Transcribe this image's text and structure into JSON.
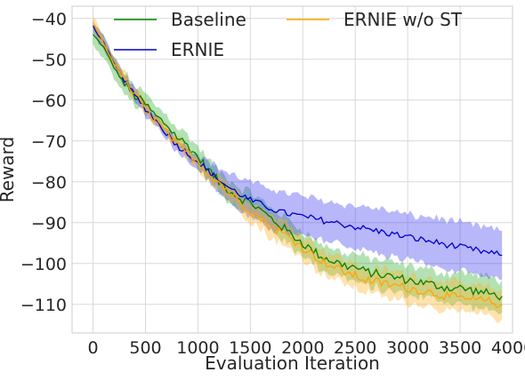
{
  "chart_data": {
    "type": "line",
    "xlabel": "Evaluation Iteration",
    "ylabel": "Reward",
    "xlim": [
      -200,
      4000
    ],
    "ylim": [
      -117,
      -37
    ],
    "xticks": [
      0,
      500,
      1000,
      1500,
      2000,
      2500,
      3000,
      3500,
      4000
    ],
    "yticks": [
      -40,
      -50,
      -60,
      -70,
      -80,
      -90,
      -100,
      -110
    ],
    "xtick_labels": [
      "0",
      "500",
      "1000",
      "1500",
      "2000",
      "2500",
      "3000",
      "3500",
      "4000"
    ],
    "ytick_labels": [
      "−40",
      "−50",
      "−60",
      "−70",
      "−80",
      "−90",
      "−100",
      "−110"
    ],
    "grid": true,
    "legend_position": "top",
    "series": [
      {
        "name": "Baseline",
        "color": "#008000",
        "x": [
          0,
          100,
          200,
          300,
          400,
          500,
          600,
          700,
          800,
          900,
          1000,
          1100,
          1200,
          1300,
          1400,
          1500,
          1600,
          1700,
          1800,
          1900,
          2000,
          2100,
          2200,
          2300,
          2400,
          2500,
          2600,
          2700,
          2800,
          2900,
          3000,
          3100,
          3200,
          3300,
          3400,
          3500,
          3600,
          3700,
          3800,
          3900
        ],
        "y": [
          -44,
          -47,
          -52,
          -56,
          -59,
          -61,
          -64,
          -66,
          -69,
          -71,
          -74,
          -77,
          -80,
          -82,
          -84,
          -85,
          -87,
          -89,
          -91,
          -93,
          -95,
          -97,
          -98.5,
          -99.5,
          -100.5,
          -101,
          -102,
          -102.5,
          -103,
          -103.5,
          -104,
          -104.5,
          -105,
          -105.5,
          -106,
          -106,
          -106.5,
          -107,
          -107.5,
          -108
        ],
        "band": [
          2.5,
          2.5,
          2.5,
          2.5,
          2.5,
          2.5,
          2.5,
          2.5,
          2.5,
          2.5,
          2.5,
          2.5,
          2.5,
          2.5,
          2.5,
          2.5,
          2.5,
          2.5,
          3,
          3,
          3,
          3,
          3,
          3,
          3,
          3.5,
          3.5,
          3.5,
          3.5,
          3.5,
          3.5,
          3.5,
          3.5,
          3.5,
          3.5,
          4,
          4,
          4,
          4,
          4
        ]
      },
      {
        "name": "ERNIE",
        "color": "#0000cc",
        "x": [
          0,
          100,
          200,
          300,
          400,
          500,
          600,
          700,
          800,
          900,
          1000,
          1100,
          1200,
          1300,
          1400,
          1500,
          1600,
          1700,
          1800,
          1900,
          2000,
          2100,
          2200,
          2300,
          2400,
          2500,
          2600,
          2700,
          2800,
          2900,
          3000,
          3100,
          3200,
          3300,
          3400,
          3500,
          3600,
          3700,
          3800,
          3900
        ],
        "y": [
          -42,
          -46,
          -51,
          -55,
          -59,
          -62,
          -65,
          -68,
          -71,
          -73,
          -75,
          -77.5,
          -79.5,
          -81.5,
          -83,
          -84.5,
          -85.5,
          -86.5,
          -87.5,
          -88,
          -88.5,
          -89,
          -89.5,
          -90,
          -90.5,
          -91,
          -91.5,
          -92,
          -92.5,
          -93,
          -93.5,
          -94,
          -94.5,
          -95,
          -95.5,
          -96,
          -96.5,
          -97,
          -97.5,
          -98
        ],
        "band": [
          1.5,
          1.5,
          1.5,
          1.5,
          1.5,
          1.5,
          1.5,
          1.5,
          1.5,
          1.5,
          2,
          2.5,
          3,
          3.5,
          4,
          4.5,
          4.5,
          5,
          5,
          5,
          5,
          5,
          5,
          5,
          5,
          5,
          5.5,
          5.5,
          5.5,
          5.5,
          5.5,
          5.5,
          6,
          6,
          6,
          6,
          6,
          6,
          6,
          6
        ]
      },
      {
        "name": "ERNIE w/o ST",
        "color": "#ffa500",
        "x": [
          0,
          100,
          200,
          300,
          400,
          500,
          600,
          700,
          800,
          900,
          1000,
          1100,
          1200,
          1300,
          1400,
          1500,
          1600,
          1700,
          1800,
          1900,
          2000,
          2100,
          2200,
          2300,
          2400,
          2500,
          2600,
          2700,
          2800,
          2900,
          3000,
          3100,
          3200,
          3300,
          3400,
          3500,
          3600,
          3700,
          3800,
          3900
        ],
        "y": [
          -41,
          -46,
          -51,
          -55,
          -59,
          -62,
          -65,
          -68,
          -71,
          -73,
          -75,
          -78,
          -80,
          -82.5,
          -85,
          -87,
          -89,
          -91,
          -92.5,
          -94,
          -96,
          -98,
          -99.5,
          -101,
          -102,
          -103,
          -104,
          -104.5,
          -105,
          -105.5,
          -106,
          -106.5,
          -107,
          -107.5,
          -108,
          -108.5,
          -109,
          -109,
          -109.5,
          -110
        ],
        "band": [
          1.5,
          1.5,
          1.5,
          1.5,
          1.5,
          1.5,
          1.5,
          1.5,
          1.5,
          1.5,
          1.5,
          1.5,
          2,
          2,
          2,
          2.5,
          2.5,
          3,
          3,
          3,
          3,
          3,
          3,
          3,
          3,
          3,
          3,
          3,
          3.5,
          3.5,
          3.5,
          3.5,
          3.5,
          3.5,
          3.5,
          3.5,
          3.5,
          3.5,
          3.5,
          3.5
        ]
      }
    ]
  }
}
